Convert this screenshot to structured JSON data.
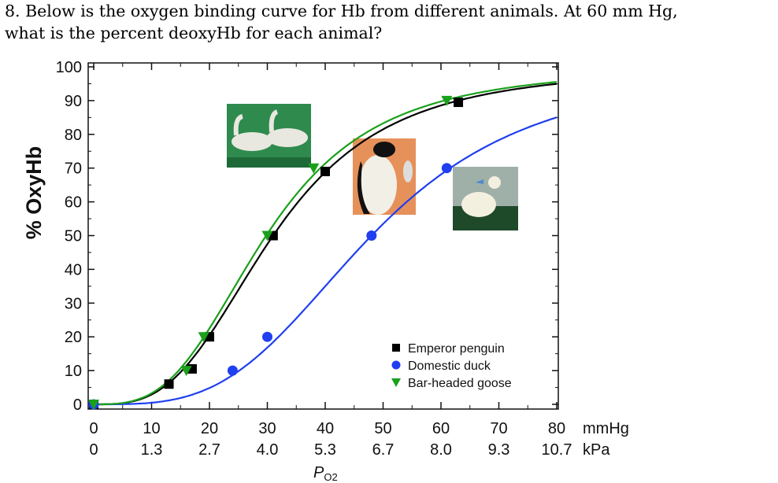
{
  "question": {
    "line1": "8.  Below is the oxygen binding curve for Hb from different animals.  At 60 mm Hg,",
    "line2": "what is the percent deoxyHb for each animal?"
  },
  "chart_data": {
    "type": "scatter",
    "title": "",
    "ylabel": "% OxyHb",
    "xlabel": "P",
    "xlabel_sub": "O2",
    "xlim": [
      0,
      80
    ],
    "ylim": [
      0,
      100
    ],
    "x_ticks": [
      "0",
      "10",
      "20",
      "30",
      "40",
      "50",
      "60",
      "70",
      "80"
    ],
    "x_unit": "mmHg",
    "x_ticks_kpa": [
      "0",
      "1.3",
      "2.7",
      "4.0",
      "5.3",
      "6.7",
      "8.0",
      "9.3",
      "10.7"
    ],
    "x_unit_kpa": "kPa",
    "y_ticks": [
      "0",
      "10",
      "20",
      "30",
      "40",
      "50",
      "60",
      "70",
      "80",
      "90",
      "100"
    ],
    "grid": false,
    "legend_position": "bottom-right",
    "series": [
      {
        "name": "Emperor penguin",
        "color": "#000000",
        "marker": "square",
        "points": [
          [
            0,
            0
          ],
          [
            13,
            6
          ],
          [
            17,
            10.5
          ],
          [
            20,
            20
          ],
          [
            31,
            50
          ],
          [
            40,
            69
          ],
          [
            63,
            89.5
          ]
        ],
        "curve": {
          "p50": 31,
          "n": 3.1
        }
      },
      {
        "name": "Domestic duck",
        "color": "#1f3ff0",
        "marker": "circle",
        "points": [
          [
            0,
            0
          ],
          [
            24,
            10
          ],
          [
            30,
            20
          ],
          [
            48,
            50
          ],
          [
            61,
            70
          ]
        ],
        "curve": {
          "p50": 48,
          "n": 3.4
        }
      },
      {
        "name": "Bar-headed goose",
        "color": "#1aa01a",
        "marker": "triangle-down",
        "points": [
          [
            0,
            0
          ],
          [
            16,
            10
          ],
          [
            19,
            20
          ],
          [
            30,
            50
          ],
          [
            38,
            70
          ],
          [
            61,
            90
          ]
        ],
        "curve": {
          "p50": 29.8,
          "n": 3.1
        }
      }
    ],
    "photos": [
      "bar-headed-goose-photo",
      "emperor-penguin-photo",
      "domestic-duck-photo"
    ]
  }
}
